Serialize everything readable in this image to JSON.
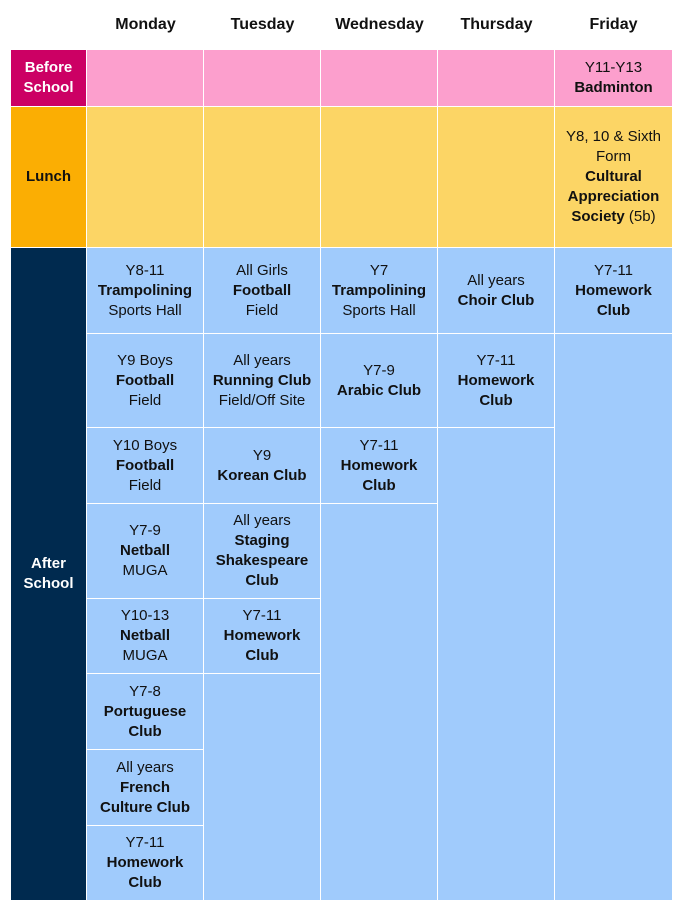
{
  "days": [
    "Monday",
    "Tuesday",
    "Wednesday",
    "Thursday",
    "Friday"
  ],
  "row_labels": {
    "before": "Before School",
    "lunch": "Lunch",
    "after": "After School"
  },
  "colors": {
    "before_label": "#cc0064",
    "before_cells": "#fc9fcd",
    "lunch_label": "#fbae03",
    "lunch_cells": "#fcd565",
    "after_label": "#002a4f",
    "after_cells": "#a0cbfc"
  },
  "before_school": {
    "friday": {
      "years": "Y11-Y13",
      "activity": "Badminton"
    }
  },
  "lunch": {
    "friday": {
      "years": "Y8, 10 & Sixth Form",
      "activity": "Cultural Appreciation Society",
      "room": "(5b)"
    }
  },
  "after_school": {
    "monday": [
      {
        "years": "Y8-11",
        "activity": "Trampolining",
        "location": "Sports Hall"
      },
      {
        "years": "Y9 Boys",
        "activity": "Football",
        "location": "Field"
      },
      {
        "years": "Y10 Boys",
        "activity": "Football",
        "location": "Field"
      },
      {
        "years": "Y7-9",
        "activity": "Netball",
        "location": "MUGA"
      },
      {
        "years": "Y10-13",
        "activity": "Netball",
        "location": "MUGA"
      },
      {
        "years": "Y7-8",
        "activity": "Portuguese Club"
      },
      {
        "years": "All years",
        "activity": "French Culture Club"
      },
      {
        "years": "Y7-11",
        "activity": "Homework Club"
      }
    ],
    "tuesday": [
      {
        "years": "All Girls",
        "activity": "Football",
        "location": "Field"
      },
      {
        "years": "All years",
        "activity": "Running Club",
        "location": "Field/Off Site"
      },
      {
        "years": "Y9",
        "activity": "Korean Club"
      },
      {
        "years": "All years",
        "activity": "Staging Shakespeare Club"
      },
      {
        "years": "Y7-11",
        "activity": "Homework Club"
      }
    ],
    "wednesday": [
      {
        "years": "Y7",
        "activity": "Trampolining",
        "location": "Sports Hall"
      },
      {
        "years": "Y7-9",
        "activity": "Arabic Club"
      },
      {
        "years": "Y7-11",
        "activity": "Homework Club"
      }
    ],
    "thursday": [
      {
        "years": "All years",
        "activity": "Choir Club"
      },
      {
        "years": "Y7-11",
        "activity": "Homework Club"
      }
    ],
    "friday": [
      {
        "years": "Y7-11",
        "activity": "Homework Club"
      }
    ]
  }
}
